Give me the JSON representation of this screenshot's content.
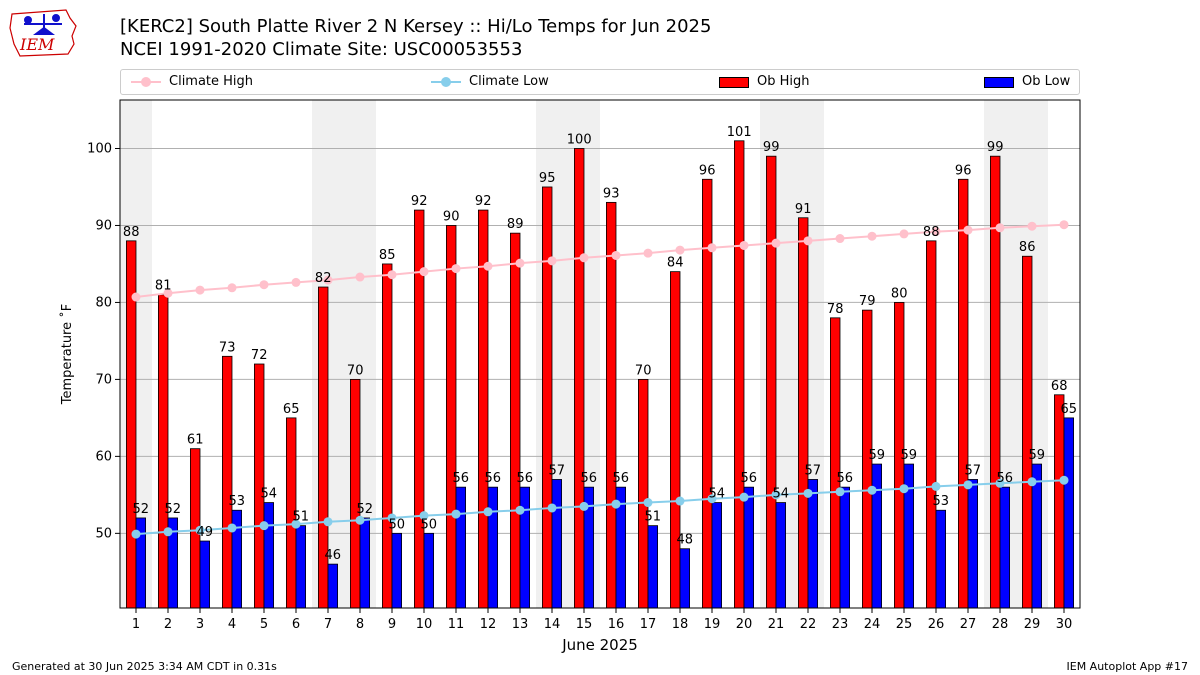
{
  "logo": {
    "text": "IEM"
  },
  "title": {
    "line1": "[KERC2] South Platte River 2 N Kersey :: Hi/Lo Temps for Jun 2025",
    "line2": "NCEI 1991-2020 Climate Site: USC00053553"
  },
  "legend": {
    "climate_high": "Climate High",
    "climate_low": "Climate Low",
    "ob_high": "Ob High",
    "ob_low": "Ob Low"
  },
  "colors": {
    "ob_high": "#ff0000",
    "ob_low": "#0000ff",
    "climate_high": "#ffc0cb",
    "climate_low": "#87ceeb",
    "weekend": "#f0f0f0",
    "grid": "#b0b0b0"
  },
  "footer": {
    "left": "Generated at 30 Jun 2025 3:34 AM CDT in 0.31s",
    "right": "IEM Autoplot App #17"
  },
  "chart_data": {
    "type": "bar",
    "xlabel": "June 2025",
    "ylabel": "Temperature ˚F",
    "ylim": [
      40.3,
      106.3
    ],
    "yticks": [
      50,
      60,
      70,
      80,
      90,
      100
    ],
    "grid": "horizontal",
    "legend_placement": "top",
    "categories": [
      1,
      2,
      3,
      4,
      5,
      6,
      7,
      8,
      9,
      10,
      11,
      12,
      13,
      14,
      15,
      16,
      17,
      18,
      19,
      20,
      21,
      22,
      23,
      24,
      25,
      26,
      27,
      28,
      29,
      30
    ],
    "weekend_days": [
      1,
      7,
      8,
      14,
      15,
      21,
      22,
      28,
      29
    ],
    "series": [
      {
        "name": "Ob High",
        "kind": "bar",
        "values": [
          88,
          81,
          61,
          73,
          72,
          65,
          82,
          70,
          85,
          92,
          90,
          92,
          89,
          95,
          100,
          93,
          70,
          84,
          96,
          101,
          99,
          91,
          78,
          79,
          80,
          88,
          96,
          99,
          86,
          68
        ]
      },
      {
        "name": "Ob Low",
        "kind": "bar",
        "values": [
          52,
          52,
          49,
          53,
          54,
          51,
          46,
          52,
          50,
          50,
          56,
          56,
          56,
          57,
          56,
          56,
          51,
          48,
          54,
          56,
          54,
          57,
          56,
          59,
          59,
          53,
          57,
          56,
          59,
          65
        ]
      },
      {
        "name": "Climate High",
        "kind": "line",
        "values": [
          80.7,
          81.2,
          81.6,
          81.9,
          82.3,
          82.6,
          82.9,
          83.3,
          83.6,
          84.0,
          84.4,
          84.7,
          85.1,
          85.4,
          85.8,
          86.1,
          86.4,
          86.8,
          87.1,
          87.4,
          87.7,
          88.0,
          88.3,
          88.6,
          88.9,
          89.2,
          89.4,
          89.7,
          89.9,
          90.1
        ]
      },
      {
        "name": "Climate Low",
        "kind": "line",
        "values": [
          49.9,
          50.2,
          50.4,
          50.7,
          51.0,
          51.2,
          51.5,
          51.7,
          52.0,
          52.3,
          52.5,
          52.8,
          53.0,
          53.3,
          53.5,
          53.8,
          54.0,
          54.2,
          54.5,
          54.7,
          55.0,
          55.2,
          55.4,
          55.6,
          55.8,
          56.1,
          56.3,
          56.5,
          56.7,
          56.9
        ]
      }
    ]
  }
}
